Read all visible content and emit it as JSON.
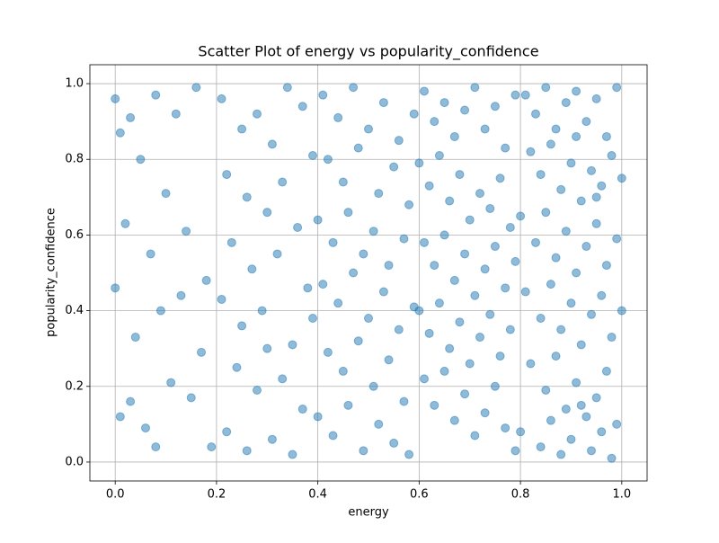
{
  "chart_data": {
    "type": "scatter",
    "title": "Scatter Plot of energy vs popularity_confidence",
    "xlabel": "energy",
    "ylabel": "popularity_confidence",
    "color": "#1f77b4",
    "alpha": 0.5,
    "grid": true,
    "xlim": [
      -0.05,
      1.05
    ],
    "ylim": [
      -0.05,
      1.05
    ],
    "xticks": [
      {
        "value": 0,
        "label": "0.0"
      },
      0.2,
      0.4,
      0.6,
      0.8,
      {
        "value": 1,
        "label": "1.0"
      }
    ],
    "yticks": [
      {
        "value": 0,
        "label": "0.0"
      },
      0.2,
      0.4,
      0.6,
      0.8,
      {
        "value": 1,
        "label": "1.0"
      }
    ],
    "x": [
      0.0,
      0.01,
      0.03,
      0.05,
      0.08,
      0.12,
      0.16,
      0.02,
      0.07,
      0.1,
      0.14,
      0.18,
      0.0,
      0.04,
      0.09,
      0.13,
      0.17,
      0.03,
      0.06,
      0.11,
      0.15,
      0.19,
      0.08,
      0.01,
      0.21,
      0.25,
      0.28,
      0.31,
      0.34,
      0.37,
      0.39,
      0.22,
      0.26,
      0.3,
      0.33,
      0.36,
      0.23,
      0.27,
      0.32,
      0.38,
      0.21,
      0.25,
      0.29,
      0.35,
      0.39,
      0.24,
      0.28,
      0.33,
      0.37,
      0.22,
      0.26,
      0.31,
      0.35,
      0.3,
      0.41,
      0.44,
      0.47,
      0.5,
      0.53,
      0.56,
      0.59,
      0.42,
      0.45,
      0.48,
      0.52,
      0.55,
      0.58,
      0.4,
      0.43,
      0.46,
      0.49,
      0.51,
      0.54,
      0.57,
      0.41,
      0.44,
      0.47,
      0.5,
      0.53,
      0.56,
      0.59,
      0.42,
      0.45,
      0.48,
      0.51,
      0.54,
      0.57,
      0.4,
      0.43,
      0.46,
      0.49,
      0.52,
      0.55,
      0.58,
      0.61,
      0.63,
      0.65,
      0.67,
      0.69,
      0.71,
      0.73,
      0.75,
      0.77,
      0.79,
      0.6,
      0.62,
      0.64,
      0.66,
      0.68,
      0.7,
      0.72,
      0.74,
      0.76,
      0.78,
      0.61,
      0.63,
      0.65,
      0.67,
      0.69,
      0.71,
      0.73,
      0.75,
      0.77,
      0.79,
      0.6,
      0.62,
      0.64,
      0.66,
      0.68,
      0.7,
      0.72,
      0.74,
      0.76,
      0.78,
      0.61,
      0.63,
      0.65,
      0.67,
      0.69,
      0.71,
      0.73,
      0.75,
      0.77,
      0.79,
      0.81,
      0.83,
      0.85,
      0.87,
      0.89,
      0.91,
      0.93,
      0.95,
      0.97,
      0.99,
      0.82,
      0.84,
      0.86,
      0.88,
      0.9,
      0.92,
      0.94,
      0.96,
      0.98,
      1.0,
      0.8,
      0.83,
      0.85,
      0.87,
      0.89,
      0.91,
      0.93,
      0.95,
      0.97,
      0.99,
      0.81,
      0.84,
      0.86,
      0.88,
      0.9,
      0.92,
      0.94,
      0.96,
      0.98,
      1.0,
      0.82,
      0.85,
      0.87,
      0.89,
      0.91,
      0.93,
      0.95,
      0.97,
      0.99,
      0.8,
      0.84,
      0.86,
      0.88,
      0.9,
      0.92,
      0.94,
      0.96,
      0.98,
      0.91,
      0.95
    ],
    "values": [
      0.96,
      0.87,
      0.91,
      0.8,
      0.97,
      0.92,
      0.99,
      0.63,
      0.55,
      0.71,
      0.61,
      0.48,
      0.46,
      0.33,
      0.4,
      0.44,
      0.29,
      0.16,
      0.09,
      0.21,
      0.17,
      0.04,
      0.04,
      0.12,
      0.96,
      0.88,
      0.92,
      0.84,
      0.99,
      0.94,
      0.81,
      0.76,
      0.7,
      0.66,
      0.74,
      0.62,
      0.58,
      0.51,
      0.55,
      0.46,
      0.43,
      0.36,
      0.4,
      0.31,
      0.38,
      0.25,
      0.19,
      0.22,
      0.14,
      0.08,
      0.03,
      0.06,
      0.02,
      0.3,
      0.97,
      0.91,
      0.99,
      0.88,
      0.95,
      0.85,
      0.92,
      0.8,
      0.74,
      0.83,
      0.71,
      0.78,
      0.68,
      0.64,
      0.58,
      0.66,
      0.55,
      0.61,
      0.52,
      0.59,
      0.47,
      0.42,
      0.5,
      0.38,
      0.45,
      0.35,
      0.41,
      0.29,
      0.24,
      0.32,
      0.2,
      0.27,
      0.16,
      0.12,
      0.07,
      0.15,
      0.03,
      0.1,
      0.05,
      0.02,
      0.98,
      0.9,
      0.95,
      0.86,
      0.93,
      0.99,
      0.88,
      0.94,
      0.83,
      0.97,
      0.79,
      0.73,
      0.81,
      0.69,
      0.76,
      0.64,
      0.71,
      0.67,
      0.75,
      0.62,
      0.58,
      0.52,
      0.6,
      0.48,
      0.55,
      0.44,
      0.51,
      0.57,
      0.46,
      0.53,
      0.4,
      0.34,
      0.42,
      0.3,
      0.37,
      0.26,
      0.33,
      0.39,
      0.28,
      0.35,
      0.22,
      0.15,
      0.24,
      0.11,
      0.18,
      0.07,
      0.13,
      0.2,
      0.09,
      0.03,
      0.97,
      0.92,
      0.99,
      0.88,
      0.95,
      0.98,
      0.9,
      0.96,
      0.86,
      0.99,
      0.82,
      0.76,
      0.84,
      0.72,
      0.79,
      0.69,
      0.77,
      0.73,
      0.81,
      0.75,
      0.65,
      0.58,
      0.66,
      0.54,
      0.61,
      0.5,
      0.57,
      0.63,
      0.52,
      0.59,
      0.45,
      0.38,
      0.47,
      0.35,
      0.42,
      0.31,
      0.39,
      0.44,
      0.33,
      0.4,
      0.26,
      0.19,
      0.28,
      0.14,
      0.21,
      0.12,
      0.17,
      0.24,
      0.1,
      0.08,
      0.04,
      0.11,
      0.02,
      0.06,
      0.15,
      0.03,
      0.08,
      0.01,
      0.86,
      0.7
    ]
  }
}
